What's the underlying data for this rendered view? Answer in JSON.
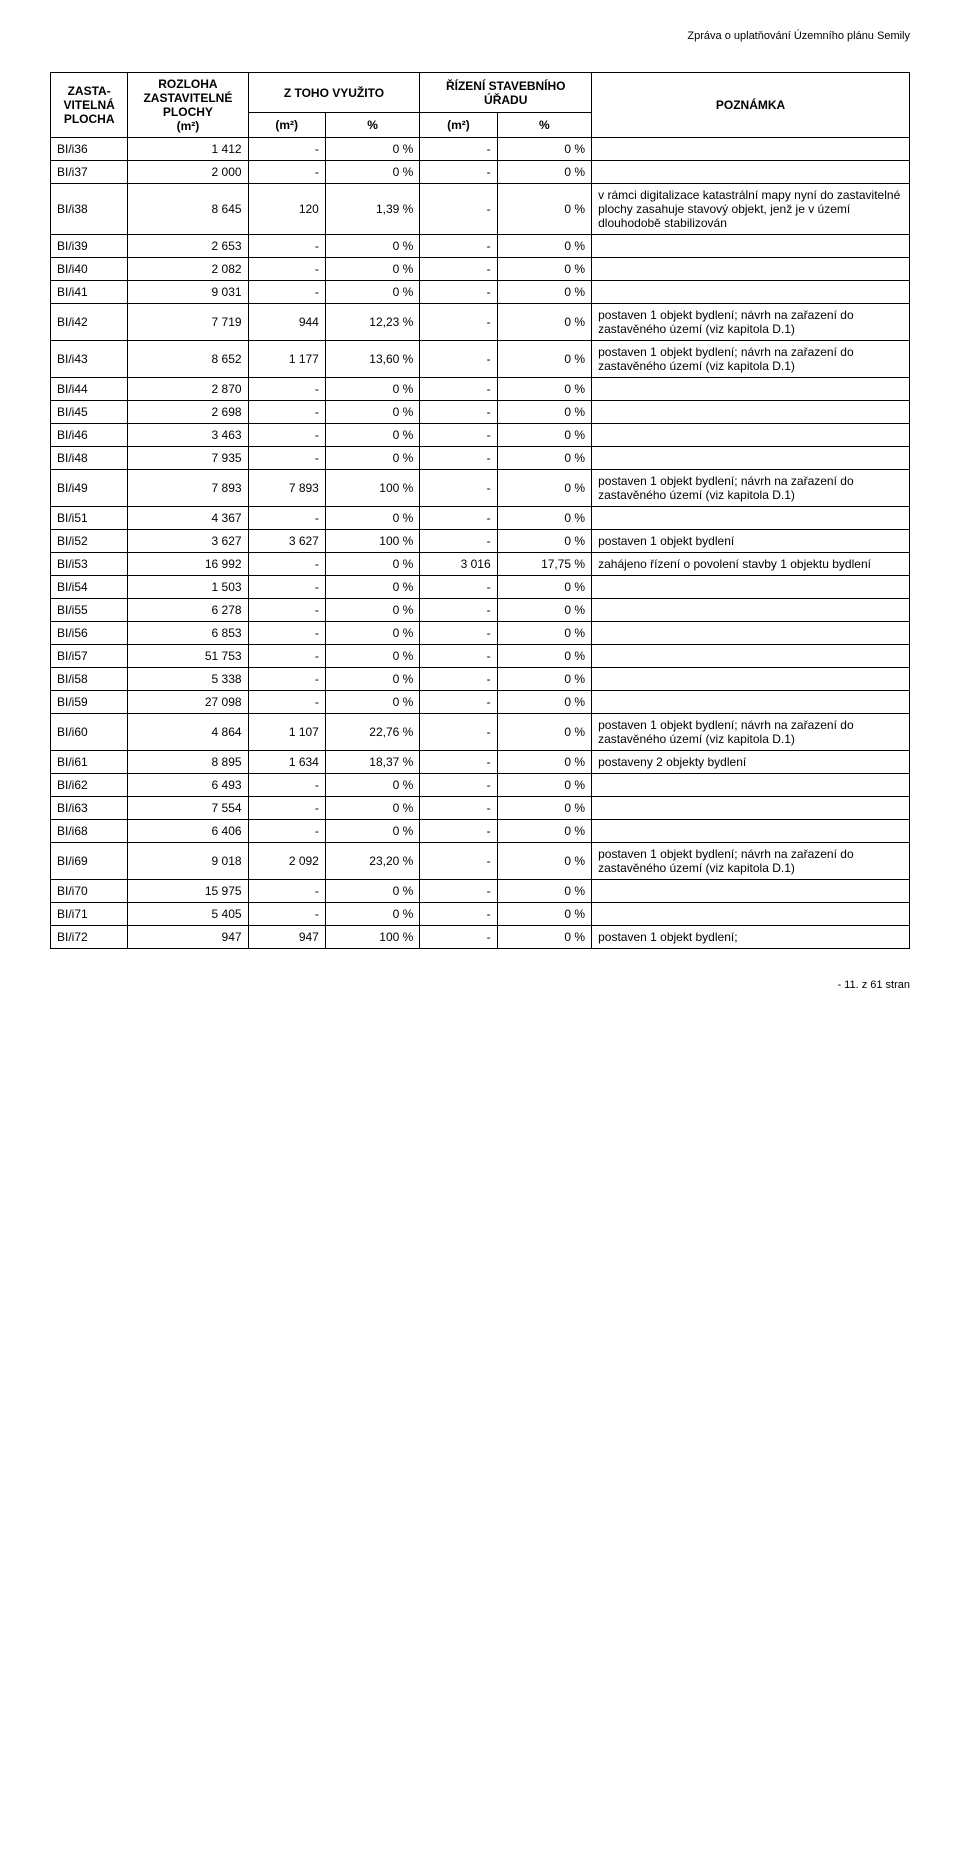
{
  "doc_header": "Zpráva o uplatňování Územního plánu Semily",
  "footer": "- 11. z 61 stran",
  "headers": {
    "col0_l1": "ZASTA-",
    "col0_l2": "VITELNÁ",
    "col0_l3": "PLOCHA",
    "col1_l1": "ROZLOHA",
    "col1_l2": "ZASTAVITELNÉ",
    "col1_l3": "PLOCHY",
    "col1_l4": "(m²)",
    "col23_top": "Z TOHO VYUŽITO",
    "col2_sub": "(m²)",
    "col3_sub": "%",
    "col45_top_l1": "ŘÍZENÍ STAVEBNÍHO",
    "col45_top_l2": "ÚŘADU",
    "col4_sub": "(m²)",
    "col5_sub": "%",
    "col6": "POZNÁMKA"
  },
  "rows": [
    {
      "a": "BI/i36",
      "b": "1 412",
      "c": "-",
      "d": "0 %",
      "e": "-",
      "f": "0 %",
      "g": ""
    },
    {
      "a": "BI/i37",
      "b": "2 000",
      "c": "-",
      "d": "0 %",
      "e": "-",
      "f": "0 %",
      "g": ""
    },
    {
      "a": "BI/i38",
      "b": "8 645",
      "c": "120",
      "d": "1,39 %",
      "e": "-",
      "f": "0 %",
      "g": "v rámci digitalizace katastrální mapy nyní do zastavitelné plochy zasahuje stavový objekt, jenž je v území dlouhodobě stabilizován"
    },
    {
      "a": "BI/i39",
      "b": "2 653",
      "c": "-",
      "d": "0 %",
      "e": "-",
      "f": "0 %",
      "g": ""
    },
    {
      "a": "BI/i40",
      "b": "2 082",
      "c": "-",
      "d": "0 %",
      "e": "-",
      "f": "0 %",
      "g": ""
    },
    {
      "a": "BI/i41",
      "b": "9 031",
      "c": "-",
      "d": "0 %",
      "e": "-",
      "f": "0 %",
      "g": ""
    },
    {
      "a": "BI/i42",
      "b": "7 719",
      "c": "944",
      "d": "12,23 %",
      "e": "-",
      "f": "0 %",
      "g": "postaven 1 objekt bydlení; návrh na zařazení do zastavěného území (viz kapitola D.1)"
    },
    {
      "a": "BI/i43",
      "b": "8 652",
      "c": "1 177",
      "d": "13,60 %",
      "e": "-",
      "f": "0 %",
      "g": "postaven 1 objekt bydlení; návrh na zařazení do zastavěného území (viz kapitola D.1)"
    },
    {
      "a": "BI/i44",
      "b": "2 870",
      "c": "-",
      "d": "0 %",
      "e": "-",
      "f": "0 %",
      "g": ""
    },
    {
      "a": "BI/i45",
      "b": "2 698",
      "c": "-",
      "d": "0 %",
      "e": "-",
      "f": "0 %",
      "g": ""
    },
    {
      "a": "BI/i46",
      "b": "3 463",
      "c": "-",
      "d": "0 %",
      "e": "-",
      "f": "0 %",
      "g": ""
    },
    {
      "a": "BI/i48",
      "b": "7 935",
      "c": "-",
      "d": "0 %",
      "e": "-",
      "f": "0 %",
      "g": ""
    },
    {
      "a": "BI/i49",
      "b": "7 893",
      "c": "7 893",
      "d": "100 %",
      "e": "-",
      "f": "0 %",
      "g": "postaven 1 objekt bydlení; návrh na zařazení do zastavěného území (viz kapitola D.1)"
    },
    {
      "a": "BI/i51",
      "b": "4 367",
      "c": "-",
      "d": "0 %",
      "e": "-",
      "f": "0 %",
      "g": ""
    },
    {
      "a": "BI/i52",
      "b": "3 627",
      "c": "3 627",
      "d": "100 %",
      "e": "-",
      "f": "0 %",
      "g": "postaven 1 objekt bydlení"
    },
    {
      "a": "BI/i53",
      "b": "16 992",
      "c": "-",
      "d": "0 %",
      "e": "3 016",
      "f": "17,75 %",
      "g": "zahájeno řízení o povolení stavby 1 objektu bydlení"
    },
    {
      "a": "BI/i54",
      "b": "1 503",
      "c": "-",
      "d": "0 %",
      "e": "-",
      "f": "0 %",
      "g": ""
    },
    {
      "a": "BI/i55",
      "b": "6 278",
      "c": "-",
      "d": "0 %",
      "e": "-",
      "f": "0 %",
      "g": ""
    },
    {
      "a": "BI/i56",
      "b": "6 853",
      "c": "-",
      "d": "0 %",
      "e": "-",
      "f": "0 %",
      "g": ""
    },
    {
      "a": "BI/i57",
      "b": "51 753",
      "c": "-",
      "d": "0 %",
      "e": "-",
      "f": "0 %",
      "g": ""
    },
    {
      "a": "BI/i58",
      "b": "5 338",
      "c": "-",
      "d": "0 %",
      "e": "-",
      "f": "0 %",
      "g": ""
    },
    {
      "a": "BI/i59",
      "b": "27 098",
      "c": "-",
      "d": "0 %",
      "e": "-",
      "f": "0 %",
      "g": ""
    },
    {
      "a": "BI/i60",
      "b": "4 864",
      "c": "1 107",
      "d": "22,76 %",
      "e": "-",
      "f": "0 %",
      "g": "postaven 1 objekt bydlení; návrh na zařazení do zastavěného území (viz kapitola D.1)"
    },
    {
      "a": "BI/i61",
      "b": "8 895",
      "c": "1 634",
      "d": "18,37 %",
      "e": "-",
      "f": "0 %",
      "g": "postaveny 2 objekty bydlení"
    },
    {
      "a": "BI/i62",
      "b": "6 493",
      "c": "-",
      "d": "0 %",
      "e": "-",
      "f": "0 %",
      "g": ""
    },
    {
      "a": "BI/i63",
      "b": "7 554",
      "c": "-",
      "d": "0 %",
      "e": "-",
      "f": "0 %",
      "g": ""
    },
    {
      "a": "BI/i68",
      "b": "6 406",
      "c": "-",
      "d": "0 %",
      "e": "-",
      "f": "0 %",
      "g": ""
    },
    {
      "a": "BI/i69",
      "b": "9 018",
      "c": "2 092",
      "d": "23,20 %",
      "e": "-",
      "f": "0 %",
      "g": "postaven 1 objekt bydlení; návrh na zařazení do zastavěného území (viz kapitola D.1)"
    },
    {
      "a": "BI/i70",
      "b": "15 975",
      "c": "-",
      "d": "0 %",
      "e": "-",
      "f": "0 %",
      "g": ""
    },
    {
      "a": "BI/i71",
      "b": "5 405",
      "c": "-",
      "d": "0 %",
      "e": "-",
      "f": "0 %",
      "g": ""
    },
    {
      "a": "BI/i72",
      "b": "947",
      "c": "947",
      "d": "100 %",
      "e": "-",
      "f": "0 %",
      "g": "postaven 1 objekt bydlení;"
    }
  ]
}
